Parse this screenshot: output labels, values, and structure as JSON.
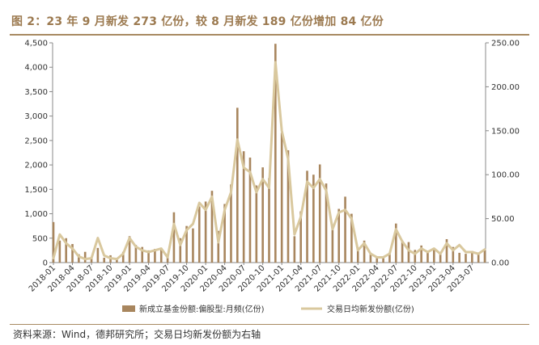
{
  "title": "图 2：23 年 9 月新发 273 亿份，较 8 月新发 189 亿份增加 84 亿份",
  "source": "资料来源：Wind，德邦研究所；交易日均新发份额为右轴",
  "chart_data": {
    "type": "bar",
    "x": [
      "2018-01",
      "2018-02",
      "2018-03",
      "2018-04",
      "2018-05",
      "2018-06",
      "2018-07",
      "2018-08",
      "2018-09",
      "2018-10",
      "2018-11",
      "2018-12",
      "2019-01",
      "2019-02",
      "2019-03",
      "2019-04",
      "2019-05",
      "2019-06",
      "2019-07",
      "2019-08",
      "2019-09",
      "2019-10",
      "2019-11",
      "2019-12",
      "2020-01",
      "2020-02",
      "2020-03",
      "2020-04",
      "2020-05",
      "2020-06",
      "2020-07",
      "2020-08",
      "2020-09",
      "2020-10",
      "2020-11",
      "2020-12",
      "2021-01",
      "2021-02",
      "2021-03",
      "2021-04",
      "2021-05",
      "2021-06",
      "2021-07",
      "2021-08",
      "2021-09",
      "2021-10",
      "2021-11",
      "2021-12",
      "2022-01",
      "2022-02",
      "2022-03",
      "2022-04",
      "2022-05",
      "2022-06",
      "2022-07",
      "2022-08",
      "2022-09",
      "2022-10",
      "2022-11",
      "2022-12",
      "2023-01",
      "2023-02",
      "2023-03",
      "2023-04",
      "2023-05",
      "2023-06",
      "2023-07",
      "2023-08",
      "2023-09"
    ],
    "x_tick_labels": [
      "2018-01",
      "2018-04",
      "2018-07",
      "2018-10",
      "2019-01",
      "2019-04",
      "2019-07",
      "2019-10",
      "2020-01",
      "2020-04",
      "2020-07",
      "2020-10",
      "2021-01",
      "2021-04",
      "2021-07",
      "2021-10",
      "2022-01",
      "2022-04",
      "2022-07",
      "2022-10",
      "2023-01",
      "2023-04",
      "2023-07"
    ],
    "y_left": {
      "min": 0,
      "max": 4500,
      "ticks": [
        "0",
        "500",
        "1,000",
        "1,500",
        "2,000",
        "2,500",
        "3,000",
        "3,500",
        "4,000",
        "4,500"
      ]
    },
    "y_right": {
      "min": 0,
      "max": 250,
      "ticks": [
        "0.00",
        "50.00",
        "100.00",
        "150.00",
        "200.00",
        "250.00"
      ]
    },
    "series": [
      {
        "name": "新成立基金份额:偏股型:月频(亿份)",
        "type": "bar",
        "axis": "left",
        "color": "#A8865E",
        "values": [
          830,
          450,
          500,
          380,
          170,
          220,
          90,
          300,
          100,
          150,
          80,
          220,
          540,
          360,
          320,
          250,
          280,
          300,
          120,
          1030,
          500,
          750,
          700,
          1150,
          1250,
          1470,
          650,
          1200,
          1600,
          3170,
          2280,
          2150,
          1580,
          1950,
          1730,
          4480,
          2660,
          2300,
          540,
          1050,
          1880,
          1800,
          2010,
          1620,
          750,
          1100,
          1350,
          1000,
          300,
          450,
          200,
          130,
          100,
          170,
          800,
          450,
          420,
          260,
          350,
          240,
          300,
          180,
          480,
          320,
          200,
          180,
          240,
          189,
          273
        ]
      },
      {
        "name": "交易日均新发份额(亿份)",
        "type": "line",
        "axis": "right",
        "color": "#D9C89E",
        "values": [
          5,
          32,
          22,
          16,
          7,
          4,
          5,
          28,
          8,
          5,
          4,
          10,
          28,
          18,
          14,
          12,
          14,
          16,
          6,
          44,
          20,
          37,
          44,
          68,
          60,
          75,
          23,
          60,
          80,
          140,
          108,
          103,
          80,
          95,
          85,
          228,
          150,
          118,
          32,
          52,
          92,
          85,
          95,
          82,
          38,
          57,
          60,
          50,
          14,
          22,
          10,
          6,
          6,
          10,
          38,
          24,
          14,
          10,
          16,
          12,
          16,
          10,
          22,
          14,
          20,
          12,
          12,
          10,
          15
        ]
      }
    ]
  }
}
